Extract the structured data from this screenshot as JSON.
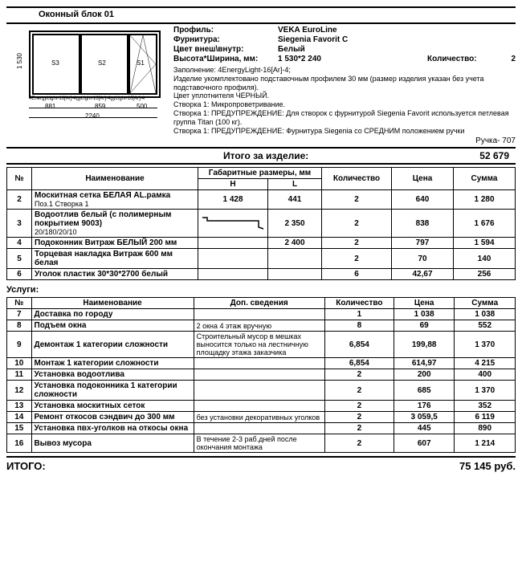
{
  "title": "Оконный блок 01",
  "idx": "1",
  "spec": {
    "profile_l": "Профиль:",
    "profile_v": "VEKA EuroLine",
    "furn_l": "Фурнитура:",
    "furn_v": "Siegenia Favorit C",
    "color_l": "Цвет внеш\\внутр:",
    "color_v": "Белый",
    "dim_l": "Высота*Ширина, мм:",
    "dim_v": "1 530*2 240",
    "qty_l": "Количество:",
    "qty_v": "2"
  },
  "desc_lines": [
    "Заполнение: 4EnergyLight-16[Ar]-4;",
    "Изделие укомплектовано подставочным профилем 30 мм (размер изделия указан без учета подставочного профиля).",
    "Цвет уплотнителя ЧЕРНЫЙ.",
    "Створка 1: Микропроветривание.",
    "Створка 1: ПРЕДУПРЕЖДЕНИЕ: Для створок с фурнитурой Siegenia Favorit используется петлевая группа Titan (100 кг).",
    "Створка 1: ПРЕДУПРЕЖДЕНИЕ: Фурнитура Siegenia со СРЕДНИМ положением ручки"
  ],
  "right_sub": "Ручка- 707",
  "total_item": {
    "label": "Итого за изделие:",
    "value": "52 679"
  },
  "table1": {
    "head": {
      "num": "№",
      "name": "Наименование",
      "dim": "Габаритные размеры, мм",
      "h": "H",
      "l": "L",
      "qty": "Количество",
      "price": "Цена",
      "sum": "Сумма"
    },
    "rows": [
      {
        "n": "2",
        "name": "Москитная сетка БЕЛАЯ AL.рамка",
        "sub": "Поз.1 Створка 1",
        "h": "1 428",
        "l": "441",
        "qty": "2",
        "price": "640",
        "sum": "1 280"
      },
      {
        "n": "3",
        "name": "Водоотлив белый (с полимерным покрытием 9003)",
        "sub": "20/180/20/10",
        "h": "__SILL__",
        "l": "2 350",
        "qty": "2",
        "price": "838",
        "sum": "1 676"
      },
      {
        "n": "4",
        "name": "Подоконник Витраж БЕЛЫЙ 200 мм",
        "h": "",
        "l": "2 400",
        "qty": "2",
        "price": "797",
        "sum": "1 594"
      },
      {
        "n": "5",
        "name": "Торцевая накладка Витраж 600 мм белая",
        "h": "",
        "l": "",
        "qty": "2",
        "price": "70",
        "sum": "140"
      },
      {
        "n": "6",
        "name": "Уголок пластик 30*30*2700 белый",
        "h": "",
        "l": "",
        "qty": "6",
        "price": "42,67",
        "sum": "256"
      }
    ]
  },
  "services_title": "Услуги:",
  "table2": {
    "head": {
      "num": "№",
      "name": "Наименование",
      "dop": "Доп. сведения",
      "qty": "Количество",
      "price": "Цена",
      "sum": "Сумма"
    },
    "rows": [
      {
        "n": "7",
        "name": "Доставка по городу",
        "dop": "",
        "qty": "1",
        "price": "1 038",
        "sum": "1 038"
      },
      {
        "n": "8",
        "name": "Подъем окна",
        "dop": "2 окна 4 этаж вручную",
        "qty": "8",
        "price": "69",
        "sum": "552"
      },
      {
        "n": "9",
        "name": "Демонтаж 1 категории сложности",
        "dop": "Строительный мусор в мешках выносится только на лестничную площадку этажа заказчика",
        "qty": "6,854",
        "price": "199,88",
        "sum": "1 370"
      },
      {
        "n": "10",
        "name": "Монтаж 1 категории сложности",
        "dop": "",
        "qty": "6,854",
        "price": "614,97",
        "sum": "4 215"
      },
      {
        "n": "11",
        "name": "Установка водоотлива",
        "dop": "",
        "qty": "2",
        "price": "200",
        "sum": "400"
      },
      {
        "n": "12",
        "name": "Установка подоконника 1 категории сложности",
        "dop": "",
        "qty": "2",
        "price": "685",
        "sum": "1 370"
      },
      {
        "n": "13",
        "name": "Установка москитных сеток",
        "dop": "",
        "qty": "2",
        "price": "176",
        "sum": "352"
      },
      {
        "n": "14",
        "name": "Ремонт откосов сэндвич до 300 мм",
        "dop": "без установки декоративных уголков",
        "qty": "2",
        "price": "3 059,5",
        "sum": "6 119"
      },
      {
        "n": "15",
        "name": "Установка пвх-уголков на откосы окна",
        "dop": "",
        "qty": "2",
        "price": "445",
        "sum": "890"
      },
      {
        "n": "16",
        "name": "Вывоз мусора",
        "dop": "В течение 2-3 раб.дней после окончания монтажа",
        "qty": "2",
        "price": "607",
        "sum": "1 214"
      }
    ]
  },
  "grand": {
    "label": "ИТОГО:",
    "value": "75 145 руб."
  },
  "diagram": {
    "h": "1 530",
    "w_total": "2240",
    "w1": "881",
    "w2": "859",
    "w3": "500",
    "s1": "S1",
    "s2": "S2",
    "s3": "S3",
    "fill_text": "4EnergyLight-16[Ar]-4gyLight-16[Ar]-4gyLight-16[Ar]-4"
  }
}
